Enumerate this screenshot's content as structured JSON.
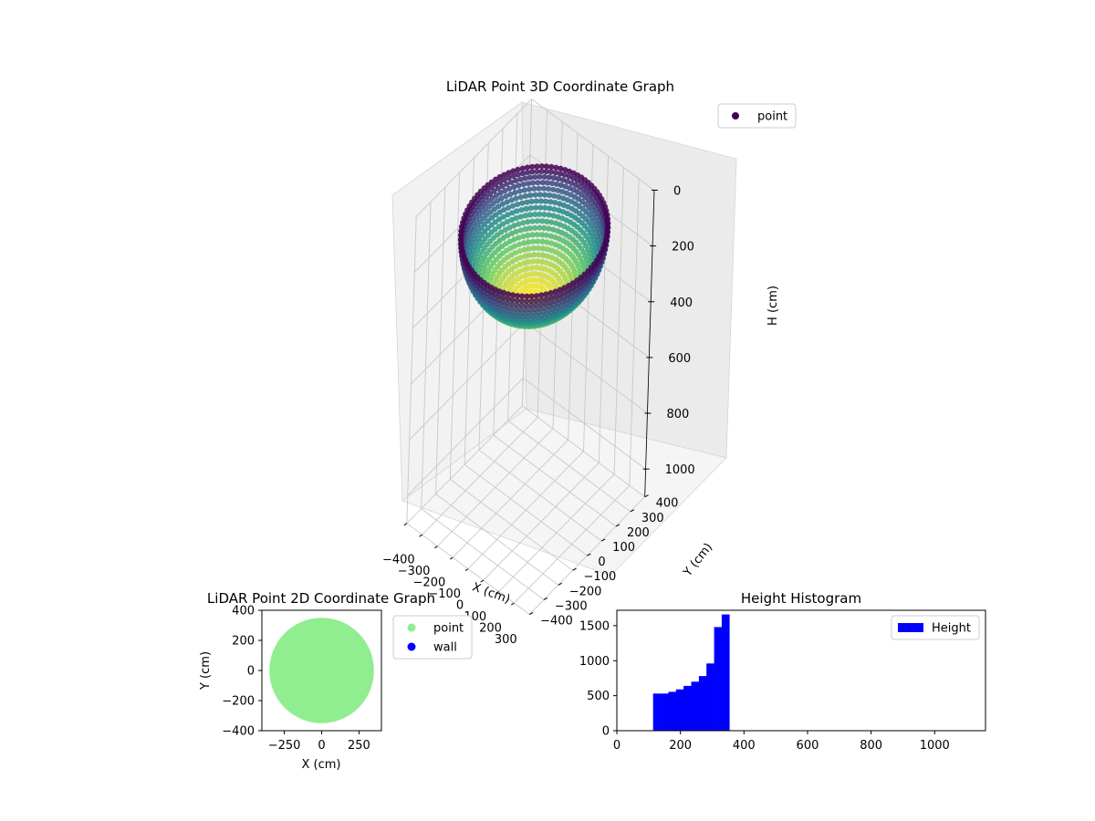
{
  "chart_data": [
    {
      "id": "lidar-3d",
      "type": "scatter",
      "title": "LiDAR Point 3D Coordinate Graph",
      "xlabel": "X (cm)",
      "ylabel": "Y (cm)",
      "zlabel": "H (cm)",
      "xlim": [
        -400,
        400
      ],
      "ylim": [
        -400,
        400
      ],
      "zlim": [
        0,
        1100
      ],
      "z_inverted": true,
      "x_ticks": [
        -400,
        -300,
        -200,
        -100,
        0,
        100,
        200,
        300
      ],
      "y_ticks": [
        -400,
        -300,
        -200,
        -100,
        0,
        100,
        200,
        300,
        400
      ],
      "z_ticks": [
        0,
        200,
        400,
        600,
        800,
        1000
      ],
      "colormap": "viridis",
      "grid": true,
      "legend_position": "top-right",
      "series": [
        {
          "name": "point",
          "color": "#440154",
          "shape": "hemispherical bowl",
          "rim_radius": 350,
          "rim_height": 100,
          "bottom_height": 350
        }
      ]
    },
    {
      "id": "lidar-2d",
      "type": "scatter",
      "title": "LiDAR Point 2D Coordinate Graph",
      "xlabel": "X (cm)",
      "ylabel": "Y (cm)",
      "xlim": [
        -400,
        400
      ],
      "ylim": [
        -400,
        400
      ],
      "x_ticks": [
        -250,
        0,
        250
      ],
      "y_ticks": [
        -400,
        -200,
        0,
        200,
        400
      ],
      "legend_position": "outside-right",
      "series": [
        {
          "name": "point",
          "color": "#90ee90",
          "shape": "disk",
          "radius": 350
        },
        {
          "name": "wall",
          "color": "#0000ff",
          "points": []
        }
      ]
    },
    {
      "id": "height-hist",
      "type": "bar",
      "title": "Height Histogram",
      "xlabel": "",
      "ylabel": "",
      "xlim": [
        0,
        1160
      ],
      "ylim": [
        0,
        1720
      ],
      "x_ticks": [
        0,
        200,
        400,
        600,
        800,
        1000
      ],
      "y_ticks": [
        0,
        500,
        1000,
        1500
      ],
      "legend_position": "top-right",
      "series": [
        {
          "name": "Height",
          "color": "#0000ff",
          "bins": [
            {
              "x0": 114,
              "x1": 138,
              "count": 530
            },
            {
              "x0": 138,
              "x1": 162,
              "count": 530
            },
            {
              "x0": 162,
              "x1": 186,
              "count": 555
            },
            {
              "x0": 186,
              "x1": 210,
              "count": 590
            },
            {
              "x0": 210,
              "x1": 234,
              "count": 640
            },
            {
              "x0": 234,
              "x1": 258,
              "count": 700
            },
            {
              "x0": 258,
              "x1": 282,
              "count": 780
            },
            {
              "x0": 282,
              "x1": 306,
              "count": 960
            },
            {
              "x0": 306,
              "x1": 330,
              "count": 1480
            },
            {
              "x0": 330,
              "x1": 354,
              "count": 1660
            }
          ]
        }
      ]
    }
  ]
}
